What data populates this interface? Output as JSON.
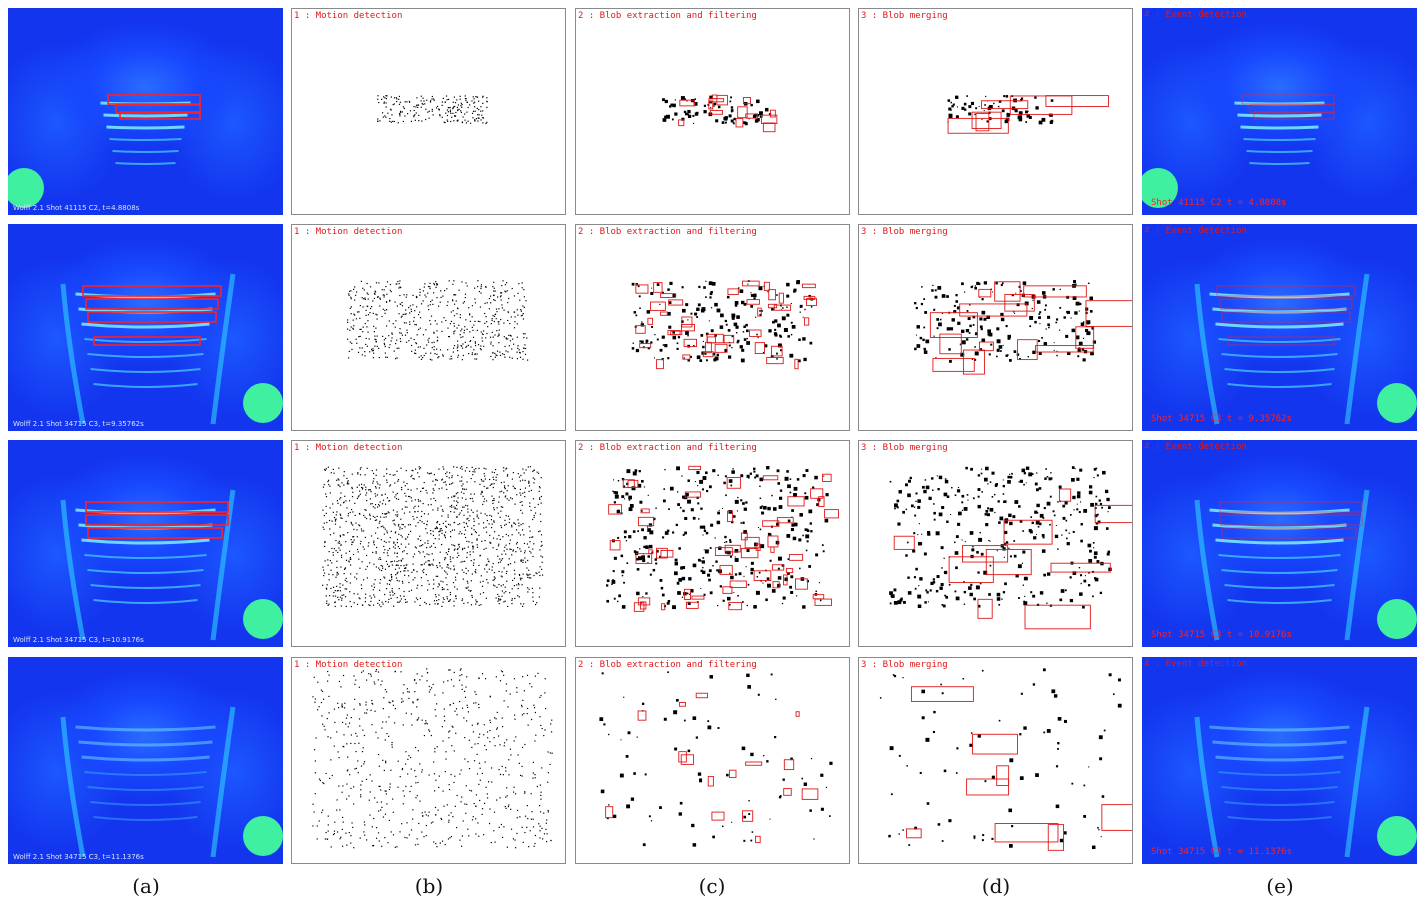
{
  "rows": [
    {
      "camera_caption": "Wolff 2.1 Shot 41115 C2, t=4.8808s",
      "event_caption": "Shot 41115 C2 t = 4.8808s"
    },
    {
      "camera_caption": "Wolff 2.1 Shot 34715 C3, t=9.35762s",
      "event_caption": "Shot 34715 C3 t = 9.35762s"
    },
    {
      "camera_caption": "Wolff 2.1 Shot 34715 C3, t=10.9176s",
      "event_caption": "Shot 34715 C3 t = 10.9176s"
    },
    {
      "camera_caption": "Wolff 2.1 Shot 34715 C3, t=11.1376s",
      "event_caption": "Shot 34715 C3 t = 11.1376s"
    }
  ],
  "stages": {
    "motion": "1 : Motion detection",
    "blob": "2 : Blob extraction and filtering",
    "merge": "3 : Blob merging",
    "event": "4 : Event detection"
  },
  "columns": [
    "(a)",
    "(b)",
    "(c)",
    "(d)",
    "(e)"
  ],
  "colors": {
    "thermal_bg": "#1335ee",
    "hot_spot": "#3ef0a0",
    "annotation_red": "#e01818"
  }
}
